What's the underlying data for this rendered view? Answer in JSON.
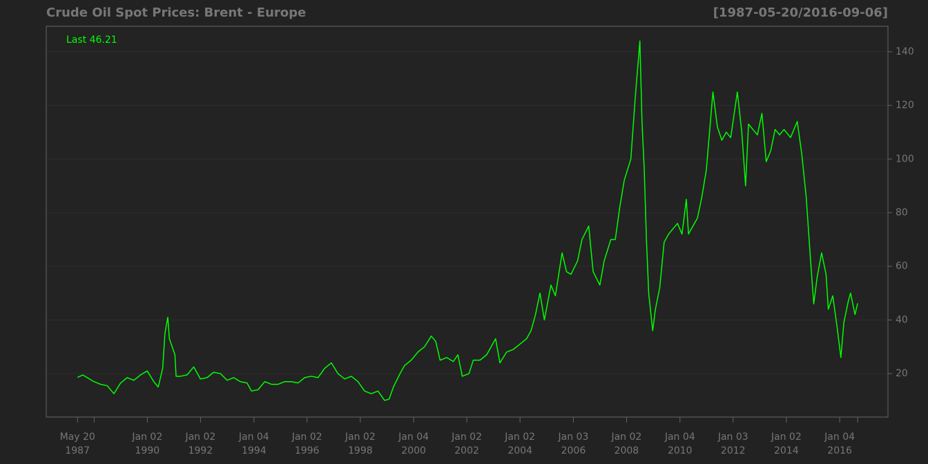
{
  "chart_data": {
    "type": "line",
    "title": "Crude Oil Spot Prices: Brent - Europe",
    "range_label": "[1987-05-20/2016-09-06]",
    "last_label": "Last 46.21",
    "color": "#00ff00",
    "grid": true,
    "xlim": [
      "1986-03-18",
      "2017-10-27"
    ],
    "ylim": [
      3.8,
      149.5
    ],
    "yticks": [
      20,
      40,
      60,
      80,
      100,
      120,
      140
    ],
    "xticks": [
      {
        "value": "1987-05-20",
        "label": [
          "May 20",
          "1987"
        ]
      },
      {
        "value": "1988-01-04",
        "label": null
      },
      {
        "value": "1990-01-02",
        "label": [
          "Jan 02",
          "1990"
        ]
      },
      {
        "value": "1992-01-02",
        "label": [
          "Jan 02",
          "1992"
        ]
      },
      {
        "value": "1994-01-04",
        "label": [
          "Jan 04",
          "1994"
        ]
      },
      {
        "value": "1996-01-02",
        "label": [
          "Jan 02",
          "1996"
        ]
      },
      {
        "value": "1998-01-02",
        "label": [
          "Jan 02",
          "1998"
        ]
      },
      {
        "value": "2000-01-04",
        "label": [
          "Jan 04",
          "2000"
        ]
      },
      {
        "value": "2002-01-02",
        "label": [
          "Jan 02",
          "2002"
        ]
      },
      {
        "value": "2004-01-02",
        "label": [
          "Jan 02",
          "2004"
        ]
      },
      {
        "value": "2006-01-03",
        "label": [
          "Jan 03",
          "2006"
        ]
      },
      {
        "value": "2008-01-02",
        "label": [
          "Jan 02",
          "2008"
        ]
      },
      {
        "value": "2010-01-04",
        "label": [
          "Jan 04",
          "2010"
        ]
      },
      {
        "value": "2012-01-03",
        "label": [
          "Jan 03",
          "2012"
        ]
      },
      {
        "value": "2014-01-02",
        "label": [
          "Jan 02",
          "2014"
        ]
      },
      {
        "value": "2016-01-04",
        "label": [
          "Jan 04",
          "2016"
        ]
      },
      {
        "value": "2016-09-06",
        "label": null
      }
    ],
    "x": [
      "1987-05-20",
      "1987-08-01",
      "1987-10-01",
      "1988-01-01",
      "1988-04-01",
      "1988-07-01",
      "1988-10-01",
      "1989-01-01",
      "1989-04-01",
      "1989-07-01",
      "1989-10-01",
      "1990-01-01",
      "1990-04-01",
      "1990-06-01",
      "1990-08-01",
      "1990-09-01",
      "1990-10-10",
      "1990-11-01",
      "1991-01-16",
      "1991-02-01",
      "1991-04-01",
      "1991-07-01",
      "1991-10-01",
      "1992-01-01",
      "1992-04-01",
      "1992-07-01",
      "1992-10-01",
      "1993-01-01",
      "1993-04-01",
      "1993-07-01",
      "1993-10-01",
      "1993-12-01",
      "1994-03-01",
      "1994-06-01",
      "1994-09-01",
      "1994-12-01",
      "1995-03-01",
      "1995-06-01",
      "1995-09-01",
      "1995-12-01",
      "1996-03-01",
      "1996-06-01",
      "1996-09-01",
      "1996-12-01",
      "1997-03-01",
      "1997-06-01",
      "1997-09-01",
      "1997-12-01",
      "1998-03-01",
      "1998-06-01",
      "1998-09-01",
      "1998-12-01",
      "1999-02-01",
      "1999-04-01",
      "1999-07-01",
      "1999-09-01",
      "1999-12-01",
      "2000-03-01",
      "2000-06-01",
      "2000-09-01",
      "2000-11-01",
      "2001-01-01",
      "2001-04-01",
      "2001-07-01",
      "2001-09-01",
      "2001-11-01",
      "2002-02-01",
      "2002-04-01",
      "2002-07-01",
      "2002-10-01",
      "2003-02-01",
      "2003-04-01",
      "2003-07-01",
      "2003-10-01",
      "2004-01-01",
      "2004-04-01",
      "2004-06-01",
      "2004-08-01",
      "2004-10-01",
      "2004-12-01",
      "2005-03-01",
      "2005-05-01",
      "2005-08-01",
      "2005-10-01",
      "2005-12-01",
      "2006-03-01",
      "2006-05-01",
      "2006-08-01",
      "2006-10-01",
      "2007-01-01",
      "2007-03-01",
      "2007-06-01",
      "2007-08-01",
      "2007-10-01",
      "2007-12-01",
      "2008-03-01",
      "2008-05-01",
      "2008-07-03",
      "2008-08-01",
      "2008-09-01",
      "2008-10-01",
      "2008-11-01",
      "2008-12-26",
      "2009-02-01",
      "2009-04-01",
      "2009-06-01",
      "2009-08-01",
      "2009-10-01",
      "2009-12-01",
      "2010-02-01",
      "2010-04-01",
      "2010-05-01",
      "2010-07-01",
      "2010-09-01",
      "2010-11-01",
      "2011-01-01",
      "2011-03-01",
      "2011-04-01",
      "2011-06-01",
      "2011-08-01",
      "2011-10-01",
      "2011-12-01",
      "2012-03-01",
      "2012-05-01",
      "2012-06-22",
      "2012-08-01",
      "2012-10-01",
      "2012-12-01",
      "2013-02-01",
      "2013-04-01",
      "2013-06-01",
      "2013-08-01",
      "2013-10-01",
      "2013-12-01",
      "2014-03-01",
      "2014-06-01",
      "2014-08-01",
      "2014-10-01",
      "2014-12-01",
      "2015-01-13",
      "2015-03-01",
      "2015-05-01",
      "2015-07-01",
      "2015-08-01",
      "2015-10-01",
      "2015-12-01",
      "2016-01-20",
      "2016-03-01",
      "2016-05-01",
      "2016-06-01",
      "2016-08-01",
      "2016-09-06"
    ],
    "values": [
      18.6,
      19.5,
      18.5,
      17,
      16,
      15.5,
      12.5,
      16.5,
      18.5,
      17.5,
      19.5,
      21,
      17,
      15,
      22,
      35,
      41,
      33,
      27,
      19,
      19,
      19.5,
      22.5,
      18,
      18.5,
      20.5,
      20,
      17.5,
      18.5,
      17,
      16.5,
      13.5,
      14,
      17,
      16,
      16,
      17,
      17,
      16.5,
      18.5,
      19,
      18.5,
      22,
      24,
      20,
      18,
      19,
      17,
      13.5,
      12.5,
      13.5,
      10,
      10.5,
      15,
      20,
      23,
      25,
      28,
      30,
      34,
      32,
      25,
      26,
      24.5,
      27,
      19,
      20,
      25,
      25,
      27,
      33,
      24,
      28,
      29,
      31,
      33,
      36,
      42,
      50,
      40,
      53,
      49,
      65,
      58,
      57,
      62,
      70,
      75,
      58,
      53,
      62,
      70,
      70,
      82,
      92,
      100,
      123,
      144,
      114,
      96,
      70,
      50,
      36,
      44,
      52,
      69,
      72,
      74,
      76,
      72,
      85,
      72,
      75,
      78,
      86,
      96,
      115,
      125,
      112,
      107,
      110,
      108,
      125,
      110,
      90,
      113,
      111,
      109,
      117,
      99,
      103,
      111,
      109,
      111,
      108,
      114,
      102,
      86,
      62,
      46,
      56,
      65,
      57,
      44,
      49,
      37,
      26,
      39,
      47,
      50,
      42,
      46.21
    ]
  }
}
